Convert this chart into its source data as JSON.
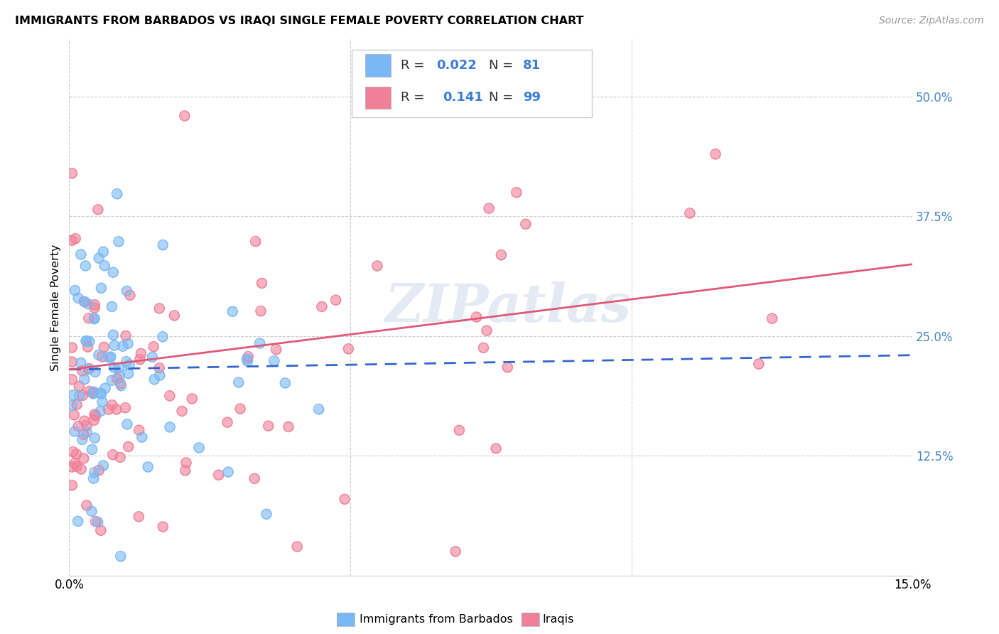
{
  "title": "IMMIGRANTS FROM BARBADOS VS IRAQI SINGLE FEMALE POVERTY CORRELATION CHART",
  "source": "Source: ZipAtlas.com",
  "ylabel": "Single Female Poverty",
  "watermark": "ZIPatlas",
  "barbados_color": "#7ab8f5",
  "iraqis_color": "#f08098",
  "barbados_line_color": "#3366cc",
  "iraqis_line_color": "#e05878",
  "xlim": [
    0.0,
    0.15
  ],
  "ylim": [
    0.0,
    0.56
  ],
  "ytick_vals": [
    0.125,
    0.25,
    0.375,
    0.5
  ],
  "ytick_labels": [
    "12.5%",
    "25.0%",
    "37.5%",
    "50.0%"
  ],
  "xtick_vals": [
    0.0,
    0.05,
    0.1,
    0.15
  ],
  "xtick_labels": [
    "0.0%",
    "",
    "",
    "15.0%"
  ],
  "barbados_intercept": 0.215,
  "barbados_slope": 0.4,
  "iraqis_intercept": 0.21,
  "iraqis_slope": 0.78,
  "N_barbados": 81,
  "N_iraqis": 99,
  "R_barbados": 0.022,
  "R_iraqis": 0.141,
  "legend_R1_val": "0.022",
  "legend_N1_val": "81",
  "legend_R2_val": "0.141",
  "legend_N2_val": "99",
  "bottom_label1": "Immigrants from Barbados",
  "bottom_label2": "Iraqis",
  "seed": 123
}
